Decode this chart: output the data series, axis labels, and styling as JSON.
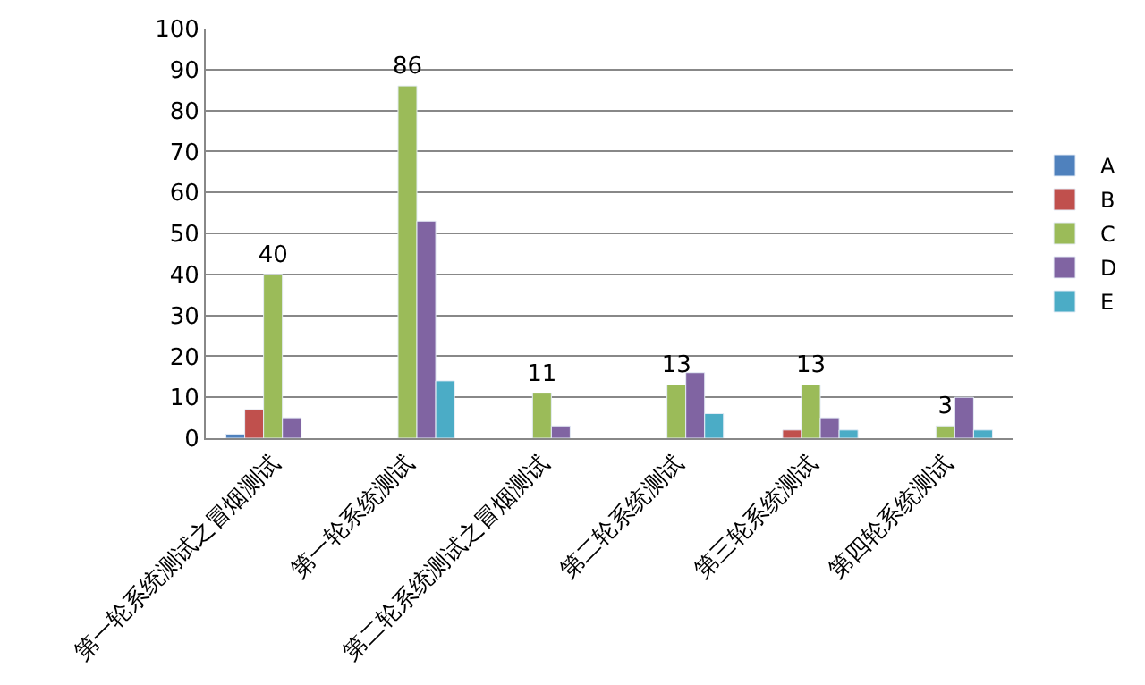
{
  "chart_data": {
    "type": "bar",
    "categories": [
      "第一轮系统测试之冒烟测试",
      "第一轮系统测试",
      "第二轮系统测试之冒烟测试",
      "第二轮系统测试",
      "第三轮系统测试",
      "第四轮系统测试"
    ],
    "series": [
      {
        "name": "A",
        "color": "#4f81bd",
        "values": [
          1,
          null,
          null,
          null,
          null,
          null
        ]
      },
      {
        "name": "B",
        "color": "#c0504d",
        "values": [
          7,
          null,
          null,
          null,
          2,
          null
        ]
      },
      {
        "name": "C",
        "color": "#9bbb59",
        "values": [
          40,
          86,
          11,
          13,
          13,
          3
        ],
        "value_labels": [
          "40",
          "86",
          "11",
          "13",
          "13",
          "3"
        ]
      },
      {
        "name": "D",
        "color": "#8064a2",
        "values": [
          5,
          53,
          3,
          16,
          5,
          10
        ]
      },
      {
        "name": "E",
        "color": "#4bacc6",
        "values": [
          null,
          14,
          null,
          6,
          2,
          2
        ]
      }
    ],
    "ylim": [
      0,
      100
    ],
    "yticks": [
      0,
      10,
      20,
      30,
      40,
      50,
      60,
      70,
      80,
      90,
      100
    ],
    "grid": "y",
    "legend": "right"
  }
}
